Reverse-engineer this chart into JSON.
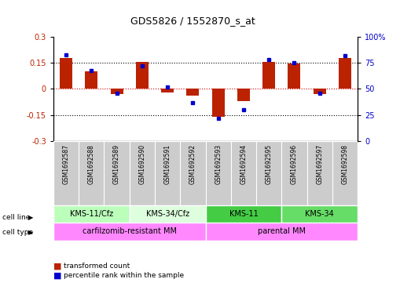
{
  "title": "GDS5826 / 1552870_s_at",
  "samples": [
    "GSM1692587",
    "GSM1692588",
    "GSM1692589",
    "GSM1692590",
    "GSM1692591",
    "GSM1692592",
    "GSM1692593",
    "GSM1692594",
    "GSM1692595",
    "GSM1692596",
    "GSM1692597",
    "GSM1692598"
  ],
  "transformed_count": [
    0.18,
    0.1,
    -0.03,
    0.155,
    -0.02,
    -0.04,
    -0.16,
    -0.07,
    0.155,
    0.148,
    -0.03,
    0.18
  ],
  "percentile_rank": [
    83,
    68,
    46,
    72,
    52,
    37,
    22,
    30,
    78,
    75,
    46,
    82
  ],
  "cell_line_groups": [
    {
      "label": "KMS-11/Cfz",
      "start": 0,
      "end": 3,
      "color": "#bbffbb"
    },
    {
      "label": "KMS-34/Cfz",
      "start": 3,
      "end": 6,
      "color": "#ddffdd"
    },
    {
      "label": "KMS-11",
      "start": 6,
      "end": 9,
      "color": "#44cc44"
    },
    {
      "label": "KMS-34",
      "start": 9,
      "end": 12,
      "color": "#66dd66"
    }
  ],
  "cell_type_groups": [
    {
      "label": "carfilzomib-resistant MM",
      "start": 0,
      "end": 6,
      "color": "#ff88ff"
    },
    {
      "label": "parental MM",
      "start": 6,
      "end": 12,
      "color": "#ff88ff"
    }
  ],
  "ylim": [
    -0.3,
    0.3
  ],
  "y2lim": [
    0,
    100
  ],
  "yticks": [
    -0.3,
    -0.15,
    0,
    0.15,
    0.3
  ],
  "y2ticks": [
    0,
    25,
    50,
    75,
    100
  ],
  "bar_color": "#bb2200",
  "dot_color": "#0000cc",
  "hline0_color": "#cc0000",
  "hline_color": "#000000",
  "bg_color": "#ffffff",
  "samp_bg_color": "#cccccc",
  "legend_bar_label": "transformed count",
  "legend_dot_label": "percentile rank within the sample",
  "bar_width": 0.5
}
